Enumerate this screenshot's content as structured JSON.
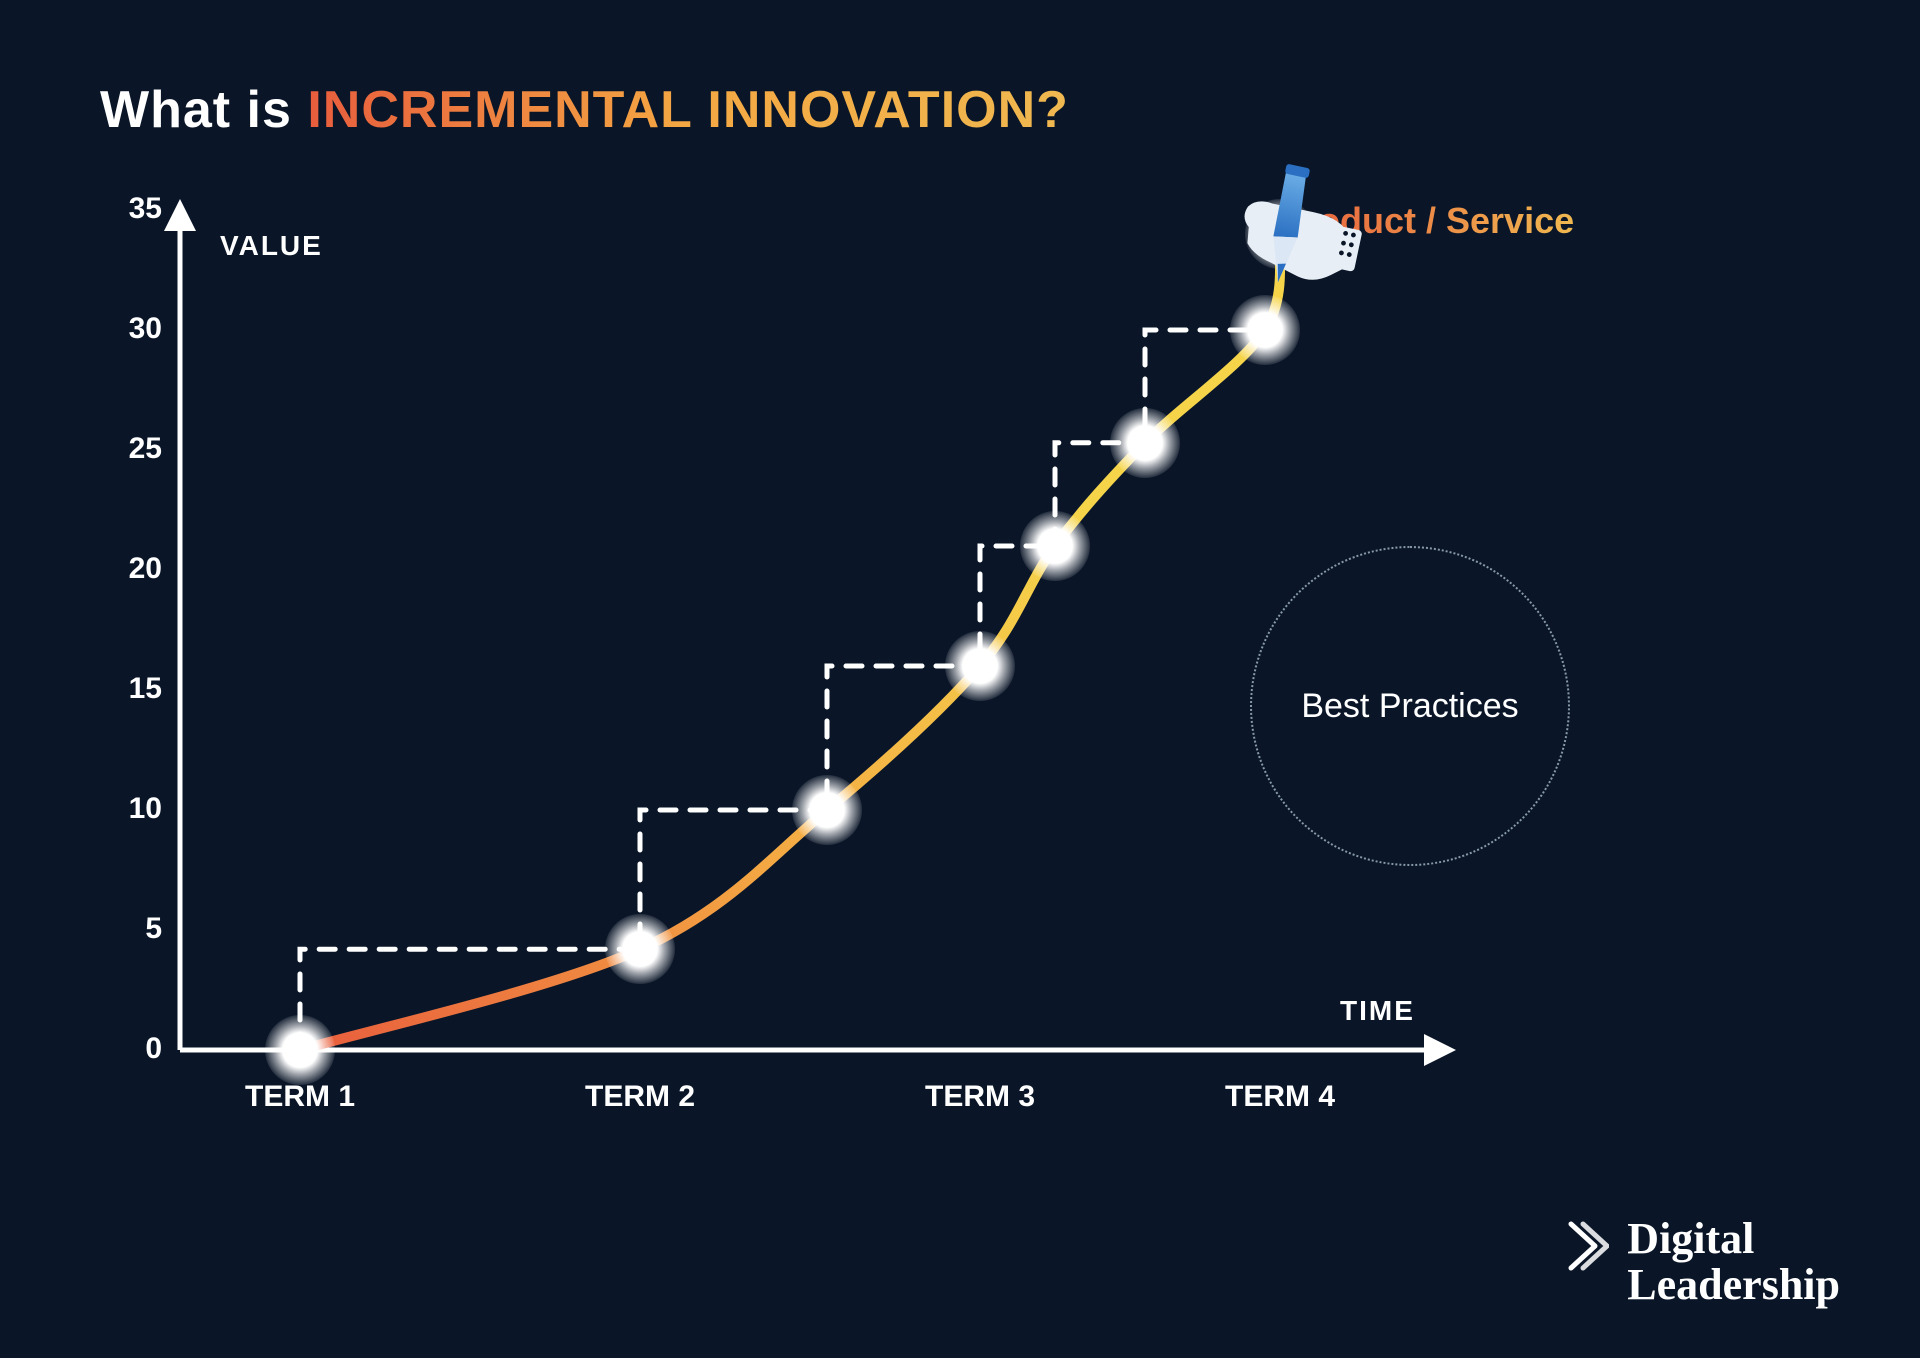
{
  "title": {
    "prefix": "What is ",
    "emphasis": "INCREMENTAL INNOVATION?"
  },
  "chart": {
    "type": "line",
    "background_color": "#0a1628",
    "axis_color": "#ffffff",
    "axis_stroke_width": 5,
    "arrowhead_size": 18,
    "y": {
      "label": "VALUE",
      "label_fontsize": 28,
      "min": 0,
      "max": 35,
      "tick_step": 5,
      "ticks": [
        0,
        5,
        10,
        15,
        20,
        25,
        30,
        35
      ],
      "tick_fontsize": 30
    },
    "x": {
      "label": "TIME",
      "label_fontsize": 28,
      "ticks": [
        "TERM 1",
        "TERM 2",
        "TERM 3",
        "TERM 4"
      ],
      "tick_fontsize": 30
    },
    "curve": {
      "legend": "Product / Service",
      "legend_color_start": "#e85d3d",
      "legend_color_end": "#f0b850",
      "gradient_stops": [
        {
          "offset": 0,
          "color": "#e85d3d"
        },
        {
          "offset": 0.35,
          "color": "#f4a843"
        },
        {
          "offset": 0.7,
          "color": "#f5d44a"
        },
        {
          "offset": 1,
          "color": "#f5d44a"
        }
      ],
      "stroke_width": 10,
      "points": [
        {
          "x": 0,
          "y": 0
        },
        {
          "x": 1,
          "y": 4.2
        },
        {
          "x": 1.55,
          "y": 10
        },
        {
          "x": 2.0,
          "y": 16
        },
        {
          "x": 2.25,
          "y": 21
        },
        {
          "x": 2.55,
          "y": 25.3
        },
        {
          "x": 2.95,
          "y": 30
        },
        {
          "x": 3.6,
          "y": 34
        }
      ],
      "x_domain": [
        0,
        4
      ]
    },
    "steps": {
      "stroke_color": "#ffffff",
      "stroke_width": 5,
      "dash": "16 14"
    },
    "glow": {
      "point_diameter": 70
    },
    "annotation_circle": {
      "text": "Best Practices",
      "diameter": 320,
      "border_color": "#8899aa",
      "text_color": "#ffffff",
      "text_fontsize": 34
    }
  },
  "brand": {
    "line1": "Digital",
    "line2": "Leadership",
    "icon_color": "#ffffff"
  },
  "colors": {
    "background": "#0a1628",
    "text": "#ffffff",
    "pen_body_light": "#6fb1e8",
    "pen_body_dark": "#2a6fc2",
    "hand": "#e8eef5"
  }
}
